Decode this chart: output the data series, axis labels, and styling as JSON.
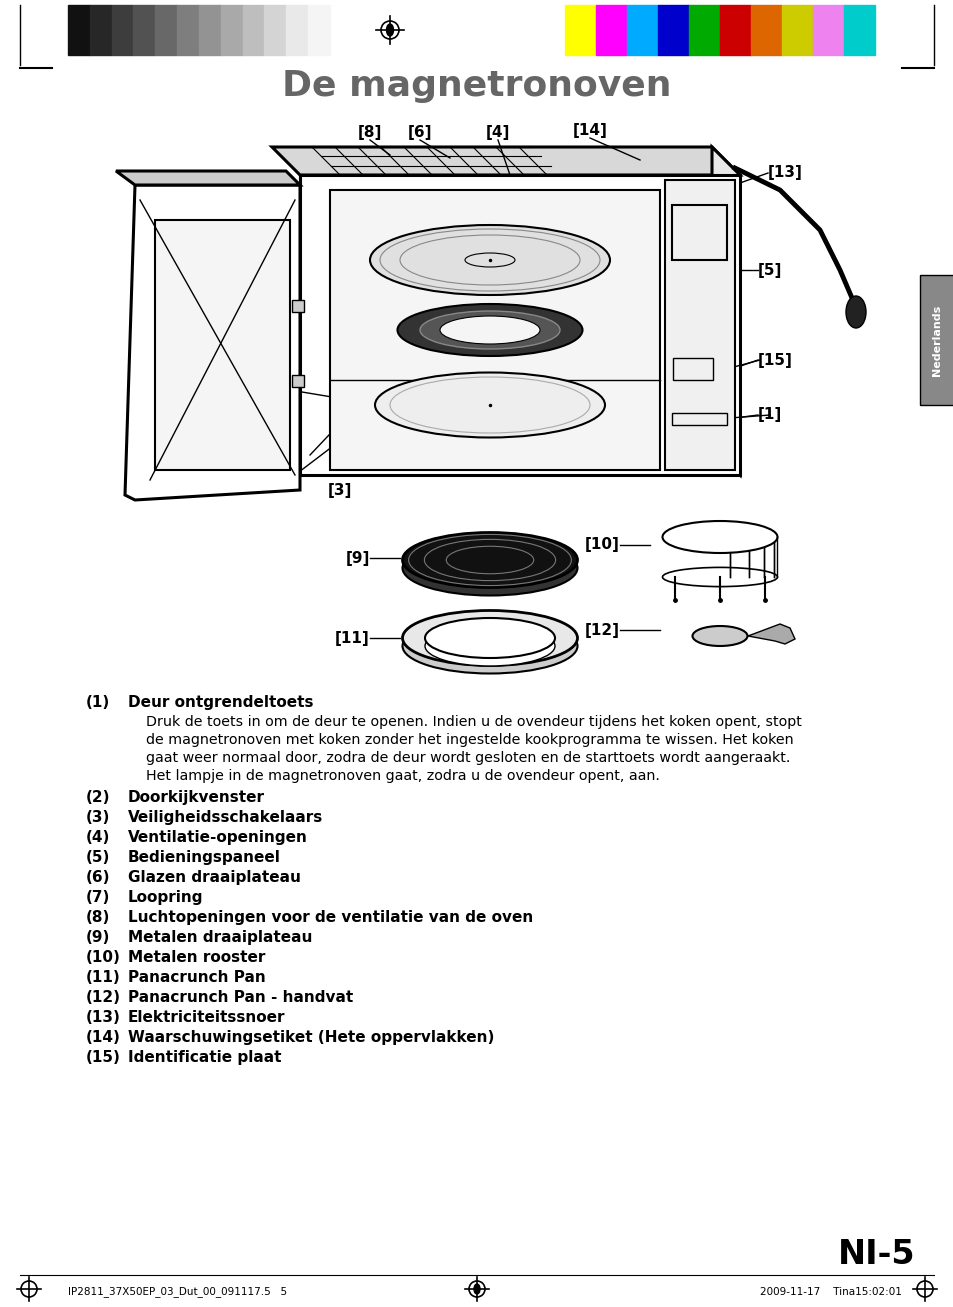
{
  "title": "De magnetronoven",
  "page_number": "NI-5",
  "sidebar_text": "Nederlands",
  "footer_left": "IP2811_37X50EP_03_Dut_00_091117.5   5",
  "footer_right": "2009-11-17    Tina15:02:01",
  "grayscale_colors": [
    "#111111",
    "#272727",
    "#3d3d3d",
    "#525252",
    "#686868",
    "#7e7e7e",
    "#939393",
    "#a9a9a9",
    "#bebebe",
    "#d4d4d4",
    "#e9e9e9",
    "#f5f5f5"
  ],
  "color_bars": [
    "#ffff00",
    "#ff00ff",
    "#00aaff",
    "#0000cc",
    "#00aa00",
    "#cc0000",
    "#dd6600",
    "#cccc00",
    "#ee82ee",
    "#00cccc"
  ],
  "items": [
    {
      "bold": "(1)",
      "label": "Deur ontgrendeltoets",
      "is_header": true
    },
    {
      "bold": "",
      "label": "Druk de toets in om de deur te openen. Indien u de ovendeur tijdens het koken opent, stopt\nde magnetronoven met koken zonder het ingestelde kookprogramma te wissen. Het koken\ngaat weer normaal door, zodra de deur wordt gesloten en de starttoets wordt aangeraakt.\nHet lampje in de magnetronoven gaat, zodra u de ovendeur opent, aan.",
      "is_header": false
    },
    {
      "bold": "(2)",
      "label": "Doorkijkvenster",
      "is_header": true
    },
    {
      "bold": "(3)",
      "label": "Veiligheidsschakelaars",
      "is_header": true
    },
    {
      "bold": "(4)",
      "label": "Ventilatie-openingen",
      "is_header": true
    },
    {
      "bold": "(5)",
      "label": "Bedieningspaneel",
      "is_header": true
    },
    {
      "bold": "(6)",
      "label": "Glazen draaiplateau",
      "is_header": true
    },
    {
      "bold": "(7)",
      "label": "Loopring",
      "is_header": true
    },
    {
      "bold": "(8)",
      "label": "Luchtopeningen voor de ventilatie van de oven",
      "is_header": true
    },
    {
      "bold": "(9)",
      "label": "Metalen draaiplateau",
      "is_header": true
    },
    {
      "bold": "(10)",
      "label": "Metalen rooster",
      "is_header": true
    },
    {
      "bold": "(11)",
      "label": "Panacrunch Pan",
      "is_header": true
    },
    {
      "bold": "(12)",
      "label": "Panacrunch Pan - handvat",
      "is_header": true
    },
    {
      "bold": "(13)",
      "label": "Elektriciteitssnoer",
      "is_header": true
    },
    {
      "bold": "(14)",
      "label": "Waarschuwingsetiket (Hete oppervlakken)",
      "is_header": true
    },
    {
      "bold": "(15)",
      "label": "Identificatie plaat",
      "is_header": true
    }
  ]
}
